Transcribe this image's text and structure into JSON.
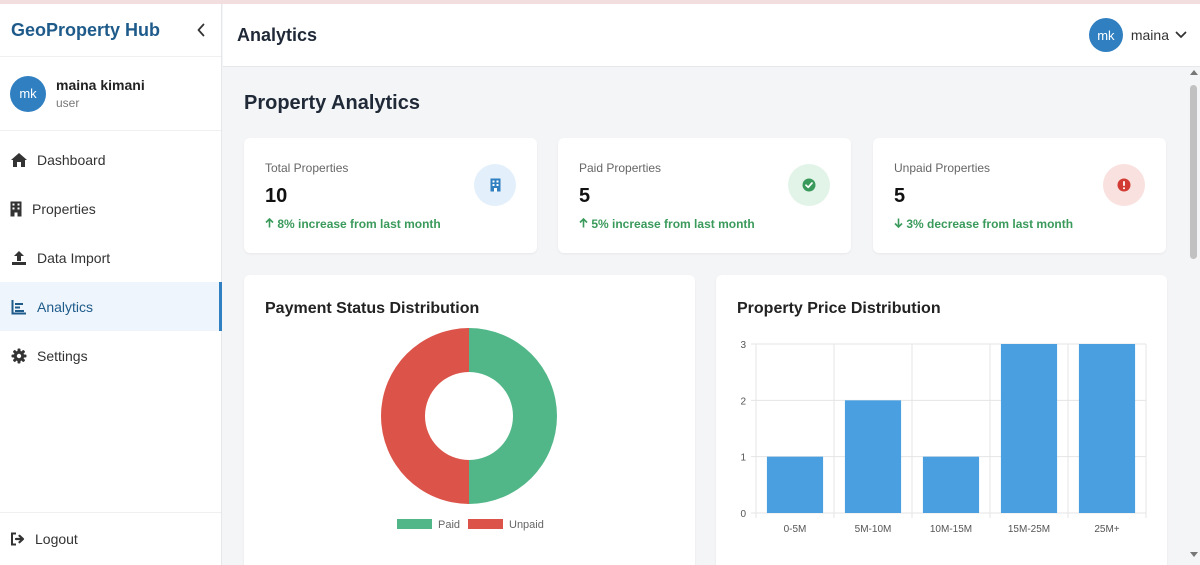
{
  "colors": {
    "brand": "#1e5b8a",
    "accent": "#2f7fc1",
    "paid": "#52b788",
    "unpaid": "#dc5449",
    "bar": "#4a9fe0",
    "trend_green": "#3a9a5b"
  },
  "sidebar": {
    "brand": "GeoProperty Hub",
    "collapse_icon": "chevron-left-icon",
    "user": {
      "initials": "mk",
      "name": "maina kimani",
      "role": "user"
    },
    "items": [
      {
        "label": "Dashboard",
        "icon": "home-icon"
      },
      {
        "label": "Properties",
        "icon": "building-icon"
      },
      {
        "label": "Data Import",
        "icon": "upload-icon"
      },
      {
        "label": "Analytics",
        "icon": "chart-icon",
        "active": true
      },
      {
        "label": "Settings",
        "icon": "gear-icon"
      }
    ],
    "logout": {
      "label": "Logout",
      "icon": "logout-icon"
    }
  },
  "header": {
    "title": "Analytics",
    "user": {
      "initials": "mk",
      "name": "maina"
    }
  },
  "main": {
    "title": "Property Analytics",
    "stats": [
      {
        "label": "Total Properties",
        "value": "10",
        "trend": "8% increase from last month",
        "trend_dir": "up",
        "icon": "building-icon"
      },
      {
        "label": "Paid Properties",
        "value": "5",
        "trend": "5% increase from last month",
        "trend_dir": "up",
        "icon": "check-circle-icon"
      },
      {
        "label": "Unpaid Properties",
        "value": "5",
        "trend": "3% decrease from last month",
        "trend_dir": "down",
        "icon": "alert-circle-icon"
      }
    ]
  },
  "chart_data": [
    {
      "type": "pie",
      "title": "Payment Status Distribution",
      "categories": [
        "Paid",
        "Unpaid"
      ],
      "values": [
        5,
        5
      ],
      "legend": "bottom"
    },
    {
      "type": "bar",
      "title": "Property Price Distribution",
      "categories": [
        "0-5M",
        "5M-10M",
        "10M-15M",
        "15M-25M",
        "25M+"
      ],
      "values": [
        1,
        2,
        1,
        3,
        3
      ],
      "ylim": [
        0,
        3
      ],
      "yticks": [
        "0",
        "1",
        "2",
        "3"
      ],
      "grid": true,
      "legend": "none"
    }
  ]
}
